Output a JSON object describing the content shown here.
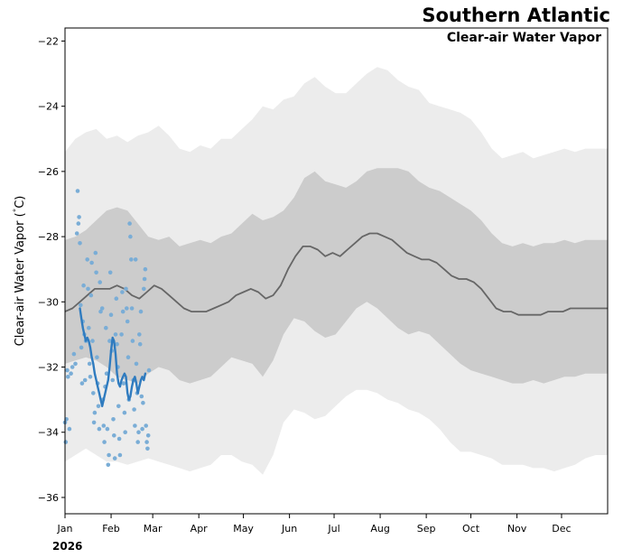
{
  "chart_data": {
    "type": "line",
    "title": "Southern Atlantic",
    "subtitle": "Clear-air Water Vapor",
    "ylabel": "Clear-air Water Vapor (°C)",
    "ylabel_main": "Clear-air Water Vapor (",
    "ylabel_degree": "°",
    "ylabel_end": "C)",
    "year_label": "2026",
    "xlim_days": [
      0,
      365
    ],
    "ylim": [
      -36.5,
      -21.6
    ],
    "yticks": [
      -36,
      -34,
      -32,
      -30,
      -28,
      -26,
      -24,
      -22
    ],
    "ytick_labels": [
      "−36",
      "−34",
      "−32",
      "−30",
      "−28",
      "−26",
      "−24",
      "−22"
    ],
    "months": [
      {
        "label": "Jan",
        "day": 0
      },
      {
        "label": "Feb",
        "day": 31
      },
      {
        "label": "Mar",
        "day": 59
      },
      {
        "label": "Apr",
        "day": 90
      },
      {
        "label": "May",
        "day": 120
      },
      {
        "label": "Jun",
        "day": 151
      },
      {
        "label": "Jul",
        "day": 181
      },
      {
        "label": "Aug",
        "day": 212
      },
      {
        "label": "Sep",
        "day": 243
      },
      {
        "label": "Oct",
        "day": 273
      },
      {
        "label": "Nov",
        "day": 304
      },
      {
        "label": "Dec",
        "day": 334
      }
    ],
    "colors": {
      "outer_band": "#ececec",
      "inner_band": "#cccccc",
      "climatology": "#666666",
      "current": "#2f7bbf",
      "points": "#7aadd6"
    },
    "series": [
      {
        "name": "outer-band-upper",
        "days": [
          0,
          7,
          14,
          21,
          28,
          35,
          42,
          49,
          56,
          63,
          70,
          77,
          84,
          91,
          98,
          105,
          112,
          119,
          126,
          133,
          140,
          147,
          154,
          161,
          168,
          175,
          182,
          189,
          196,
          203,
          210,
          217,
          224,
          231,
          238,
          245,
          252,
          259,
          266,
          273,
          280,
          287,
          294,
          301,
          308,
          315,
          322,
          329,
          336,
          343,
          350,
          357,
          365
        ],
        "values": [
          -25.4,
          -25.0,
          -24.8,
          -24.7,
          -25.0,
          -24.9,
          -25.1,
          -24.9,
          -24.8,
          -24.6,
          -24.9,
          -25.3,
          -25.4,
          -25.2,
          -25.3,
          -25.0,
          -25.0,
          -24.7,
          -24.4,
          -24.0,
          -24.1,
          -23.8,
          -23.7,
          -23.3,
          -23.1,
          -23.4,
          -23.6,
          -23.6,
          -23.3,
          -23.0,
          -22.8,
          -22.9,
          -23.2,
          -23.4,
          -23.5,
          -23.9,
          -24.0,
          -24.1,
          -24.2,
          -24.4,
          -24.8,
          -25.3,
          -25.6,
          -25.5,
          -25.4,
          -25.6,
          -25.5,
          -25.4,
          -25.3,
          -25.4,
          -25.3,
          -25.3,
          -25.3
        ]
      },
      {
        "name": "inner-band-upper",
        "days": [
          0,
          7,
          14,
          21,
          28,
          35,
          42,
          49,
          56,
          63,
          70,
          77,
          84,
          91,
          98,
          105,
          112,
          119,
          126,
          133,
          140,
          147,
          154,
          161,
          168,
          175,
          182,
          189,
          196,
          203,
          210,
          217,
          224,
          231,
          238,
          245,
          252,
          259,
          266,
          273,
          280,
          287,
          294,
          301,
          308,
          315,
          322,
          329,
          336,
          343,
          350,
          357,
          365
        ],
        "values": [
          -28.1,
          -28.0,
          -27.8,
          -27.5,
          -27.2,
          -27.1,
          -27.2,
          -27.6,
          -28.0,
          -28.1,
          -28.0,
          -28.3,
          -28.2,
          -28.1,
          -28.2,
          -28.0,
          -27.9,
          -27.6,
          -27.3,
          -27.5,
          -27.4,
          -27.2,
          -26.8,
          -26.2,
          -26.0,
          -26.3,
          -26.4,
          -26.5,
          -26.3,
          -26.0,
          -25.9,
          -25.9,
          -25.9,
          -26.0,
          -26.3,
          -26.5,
          -26.6,
          -26.8,
          -27.0,
          -27.2,
          -27.5,
          -27.9,
          -28.2,
          -28.3,
          -28.2,
          -28.3,
          -28.2,
          -28.2,
          -28.1,
          -28.2,
          -28.1,
          -28.1,
          -28.1
        ]
      },
      {
        "name": "inner-band-lower",
        "days": [
          0,
          7,
          14,
          21,
          28,
          35,
          42,
          49,
          56,
          63,
          70,
          77,
          84,
          91,
          98,
          105,
          112,
          119,
          126,
          133,
          140,
          147,
          154,
          161,
          168,
          175,
          182,
          189,
          196,
          203,
          210,
          217,
          224,
          231,
          238,
          245,
          252,
          259,
          266,
          273,
          280,
          287,
          294,
          301,
          308,
          315,
          322,
          329,
          336,
          343,
          350,
          357,
          365
        ],
        "values": [
          -31.9,
          -31.8,
          -31.7,
          -31.8,
          -32.0,
          -32.3,
          -32.4,
          -32.5,
          -32.2,
          -32.0,
          -32.1,
          -32.4,
          -32.5,
          -32.4,
          -32.3,
          -32.0,
          -31.7,
          -31.8,
          -31.9,
          -32.3,
          -31.8,
          -31.0,
          -30.5,
          -30.6,
          -30.9,
          -31.1,
          -31.0,
          -30.6,
          -30.2,
          -30.0,
          -30.2,
          -30.5,
          -30.8,
          -31.0,
          -30.9,
          -31.0,
          -31.3,
          -31.6,
          -31.9,
          -32.1,
          -32.2,
          -32.3,
          -32.4,
          -32.5,
          -32.5,
          -32.4,
          -32.5,
          -32.4,
          -32.3,
          -32.3,
          -32.2,
          -32.2,
          -32.2
        ]
      },
      {
        "name": "outer-band-lower",
        "days": [
          0,
          7,
          14,
          21,
          28,
          35,
          42,
          49,
          56,
          63,
          70,
          77,
          84,
          91,
          98,
          105,
          112,
          119,
          126,
          133,
          140,
          147,
          154,
          161,
          168,
          175,
          182,
          189,
          196,
          203,
          210,
          217,
          224,
          231,
          238,
          245,
          252,
          259,
          266,
          273,
          280,
          287,
          294,
          301,
          308,
          315,
          322,
          329,
          336,
          343,
          350,
          357,
          365
        ],
        "values": [
          -34.9,
          -34.7,
          -34.5,
          -34.7,
          -34.9,
          -34.9,
          -35.0,
          -34.9,
          -34.8,
          -34.9,
          -35.0,
          -35.1,
          -35.2,
          -35.1,
          -35.0,
          -34.7,
          -34.7,
          -34.9,
          -35.0,
          -35.3,
          -34.7,
          -33.7,
          -33.3,
          -33.4,
          -33.6,
          -33.5,
          -33.2,
          -32.9,
          -32.7,
          -32.7,
          -32.8,
          -33.0,
          -33.1,
          -33.3,
          -33.4,
          -33.6,
          -33.9,
          -34.3,
          -34.6,
          -34.6,
          -34.7,
          -34.8,
          -35.0,
          -35.0,
          -35.0,
          -35.1,
          -35.1,
          -35.2,
          -35.1,
          -35.0,
          -34.8,
          -34.7,
          -34.7
        ]
      },
      {
        "name": "climatology-mean",
        "days": [
          0,
          5,
          10,
          15,
          20,
          25,
          30,
          35,
          40,
          45,
          50,
          55,
          60,
          65,
          70,
          75,
          80,
          85,
          90,
          95,
          100,
          105,
          110,
          115,
          120,
          125,
          130,
          135,
          140,
          145,
          150,
          155,
          160,
          165,
          170,
          175,
          180,
          185,
          190,
          195,
          200,
          205,
          210,
          215,
          220,
          225,
          230,
          235,
          240,
          245,
          250,
          255,
          260,
          265,
          270,
          275,
          280,
          285,
          290,
          295,
          300,
          305,
          310,
          315,
          320,
          325,
          330,
          335,
          340,
          345,
          350,
          355,
          360,
          365
        ],
        "values": [
          -30.3,
          -30.2,
          -30.0,
          -29.8,
          -29.6,
          -29.6,
          -29.6,
          -29.5,
          -29.6,
          -29.8,
          -29.9,
          -29.7,
          -29.5,
          -29.6,
          -29.8,
          -30.0,
          -30.2,
          -30.3,
          -30.3,
          -30.3,
          -30.2,
          -30.1,
          -30.0,
          -29.8,
          -29.7,
          -29.6,
          -29.7,
          -29.9,
          -29.8,
          -29.5,
          -29.0,
          -28.6,
          -28.3,
          -28.3,
          -28.4,
          -28.6,
          -28.5,
          -28.6,
          -28.4,
          -28.2,
          -28.0,
          -27.9,
          -27.9,
          -28.0,
          -28.1,
          -28.3,
          -28.5,
          -28.6,
          -28.7,
          -28.7,
          -28.8,
          -29.0,
          -29.2,
          -29.3,
          -29.3,
          -29.4,
          -29.6,
          -29.9,
          -30.2,
          -30.3,
          -30.3,
          -30.4,
          -30.4,
          -30.4,
          -30.4,
          -30.3,
          -30.3,
          -30.3,
          -30.2,
          -30.2,
          -30.2,
          -30.2,
          -30.2,
          -30.2
        ]
      },
      {
        "name": "current-year-smoothed",
        "days": [
          10,
          11,
          12,
          13,
          14,
          15,
          16,
          17,
          18,
          19,
          20,
          21,
          22,
          23,
          24,
          25,
          26,
          27,
          28,
          29,
          30,
          31,
          32,
          33,
          34,
          35,
          36,
          37,
          38,
          39,
          40,
          41,
          42,
          43,
          44,
          45,
          46,
          47,
          48,
          49,
          50,
          51,
          52,
          53,
          54
        ],
        "values": [
          -30.2,
          -30.5,
          -30.8,
          -31.0,
          -31.2,
          -31.1,
          -31.2,
          -31.4,
          -31.7,
          -31.9,
          -32.2,
          -32.4,
          -32.6,
          -32.8,
          -33.0,
          -33.2,
          -33.0,
          -32.8,
          -32.6,
          -32.4,
          -32.0,
          -31.5,
          -31.1,
          -31.2,
          -31.6,
          -32.2,
          -32.5,
          -32.6,
          -32.4,
          -32.3,
          -32.2,
          -32.3,
          -32.8,
          -33.0,
          -32.9,
          -32.6,
          -32.4,
          -32.3,
          -32.5,
          -32.8,
          -32.6,
          -32.4,
          -32.3,
          -32.4,
          -32.2
        ]
      }
    ],
    "points": [
      [
        0,
        -33.7
      ],
      [
        0.5,
        -34.3
      ],
      [
        1,
        -33.6
      ],
      [
        1.5,
        -32.1
      ],
      [
        2,
        -32.3
      ],
      [
        3,
        -33.9
      ],
      [
        4,
        -32.2
      ],
      [
        5,
        -32.0
      ],
      [
        6,
        -31.6
      ],
      [
        7,
        -31.9
      ],
      [
        8,
        -27.9
      ],
      [
        8.5,
        -26.6
      ],
      [
        9,
        -27.6
      ],
      [
        9.5,
        -27.4
      ],
      [
        10,
        -28.2
      ],
      [
        10.5,
        -30.1
      ],
      [
        11,
        -31.4
      ],
      [
        11.5,
        -32.5
      ],
      [
        12,
        -30.6
      ],
      [
        12.5,
        -29.5
      ],
      [
        13,
        -31.0
      ],
      [
        13.5,
        -32.4
      ],
      [
        14,
        -31.2
      ],
      [
        15,
        -28.7
      ],
      [
        15.5,
        -29.6
      ],
      [
        16,
        -30.8
      ],
      [
        16.5,
        -31.9
      ],
      [
        17,
        -32.3
      ],
      [
        17.5,
        -29.8
      ],
      [
        18,
        -28.8
      ],
      [
        18.5,
        -31.2
      ],
      [
        19,
        -32.8
      ],
      [
        19.5,
        -33.7
      ],
      [
        20,
        -33.4
      ],
      [
        20.5,
        -28.5
      ],
      [
        21,
        -29.1
      ],
      [
        21.5,
        -31.7
      ],
      [
        22,
        -32.5
      ],
      [
        22.5,
        -33.2
      ],
      [
        23,
        -33.9
      ],
      [
        23.5,
        -29.4
      ],
      [
        24,
        -30.3
      ],
      [
        25,
        -30.2
      ],
      [
        25.5,
        -33.0
      ],
      [
        26,
        -33.8
      ],
      [
        26.5,
        -34.3
      ],
      [
        27,
        -32.6
      ],
      [
        27.5,
        -30.8
      ],
      [
        28,
        -32.2
      ],
      [
        28.5,
        -33.9
      ],
      [
        29,
        -35.0
      ],
      [
        29.5,
        -34.7
      ],
      [
        30,
        -31.2
      ],
      [
        30.5,
        -29.1
      ],
      [
        31,
        -30.4
      ],
      [
        31.5,
        -31.5
      ],
      [
        32,
        -32.4
      ],
      [
        32.5,
        -33.6
      ],
      [
        33,
        -34.1
      ],
      [
        33.5,
        -34.8
      ],
      [
        34,
        -31.0
      ],
      [
        34.5,
        -29.9
      ],
      [
        35,
        -31.3
      ],
      [
        35.5,
        -32.0
      ],
      [
        36,
        -33.2
      ],
      [
        36.5,
        -34.2
      ],
      [
        37,
        -34.7
      ],
      [
        38,
        -31.0
      ],
      [
        38.5,
        -29.7
      ],
      [
        39,
        -30.3
      ],
      [
        39.5,
        -32.5
      ],
      [
        40,
        -33.4
      ],
      [
        40.5,
        -34.0
      ],
      [
        41,
        -29.6
      ],
      [
        41.5,
        -30.2
      ],
      [
        42,
        -30.6
      ],
      [
        42.5,
        -31.7
      ],
      [
        43,
        -33.0
      ],
      [
        43.5,
        -27.6
      ],
      [
        44,
        -28.0
      ],
      [
        44.5,
        -28.7
      ],
      [
        45,
        -30.2
      ],
      [
        45.5,
        -31.2
      ],
      [
        46,
        -32.4
      ],
      [
        46.5,
        -33.3
      ],
      [
        47,
        -33.8
      ],
      [
        47.5,
        -28.7
      ],
      [
        48,
        -31.9
      ],
      [
        48.5,
        -32.8
      ],
      [
        49,
        -34.3
      ],
      [
        49.5,
        -34.0
      ],
      [
        50,
        -31.0
      ],
      [
        50.5,
        -31.3
      ],
      [
        51,
        -30.3
      ],
      [
        51.5,
        -32.9
      ],
      [
        52,
        -33.9
      ],
      [
        52.5,
        -33.1
      ],
      [
        53,
        -29.6
      ],
      [
        53.5,
        -29.3
      ],
      [
        54,
        -29.0
      ],
      [
        54.5,
        -33.8
      ],
      [
        55,
        -34.3
      ],
      [
        55.5,
        -34.5
      ],
      [
        56,
        -34.1
      ],
      [
        56.5,
        -32.1
      ]
    ]
  }
}
